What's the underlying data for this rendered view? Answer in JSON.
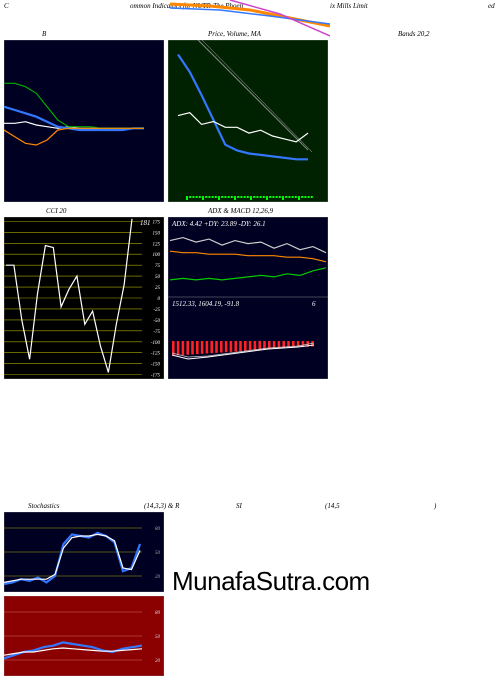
{
  "header": {
    "t1": "C",
    "t2": "ommon  Indicators  for  NUTR-The  Phoen",
    "t3": "ix Mills Limit",
    "t4": "ed"
  },
  "labels": {
    "bollinger_left": "B",
    "price_ma": "Price,  Volume,  MA",
    "bands": "Bands 20,2",
    "cci": "CCI 20",
    "adx_macd": "ADX  &  MACD 12,26,9",
    "stoch_a": "Stochastics",
    "stoch_b": "(14,3,3) & R",
    "stoch_c": "SI",
    "stoch_d": "(14,5",
    "stoch_e": ")"
  },
  "watermark": "MunafaSutra.com",
  "colors": {
    "panel_dark": "#000022",
    "panel_green": "#002200",
    "panel_red": "#8b0000",
    "blue": "#3377ff",
    "orange": "#ff8800",
    "green": "#00cc00",
    "white": "#ffffff"
  },
  "chart_data": [
    {
      "type": "line",
      "name_label": "B",
      "series": [
        {
          "color": "#ffffff",
          "values": [
            46,
            46,
            47,
            45,
            44,
            43,
            44,
            43,
            43,
            43,
            43,
            43,
            43,
            43
          ]
        },
        {
          "color": "#3377ff",
          "values": [
            56,
            54,
            52,
            50,
            47,
            44,
            43,
            42,
            42,
            42,
            42,
            42,
            43,
            43
          ]
        },
        {
          "color": "#00aa00",
          "values": [
            70,
            70,
            68,
            64,
            56,
            48,
            44,
            44,
            44,
            43,
            43,
            43,
            43,
            43
          ]
        },
        {
          "color": "#ff8800",
          "values": [
            42,
            38,
            34,
            33,
            36,
            42,
            43,
            43,
            43,
            43,
            43,
            43,
            43,
            43
          ]
        }
      ]
    },
    {
      "type": "line",
      "name_label": "Price, Volume, MA",
      "series": [
        {
          "color": "#3377ff",
          "values": [
            100,
            88,
            72,
            55,
            38,
            34,
            32,
            31,
            30,
            29,
            28,
            28
          ]
        },
        {
          "color": "#ffffff",
          "values": [
            58,
            60,
            52,
            54,
            50,
            50,
            46,
            48,
            44,
            42,
            40,
            46
          ]
        }
      ]
    },
    {
      "type": "line",
      "name_label": "CCI 20",
      "yticks": [
        175,
        150,
        125,
        100,
        75,
        50,
        25,
        0,
        -25,
        -50,
        -75,
        -100,
        -125,
        -150,
        -175
      ],
      "ylim": [
        -185,
        185
      ],
      "last_label": "181",
      "series": [
        {
          "color": "#ffffff",
          "values": [
            75,
            75,
            -50,
            -140,
            10,
            120,
            115,
            -20,
            20,
            50,
            -60,
            -30,
            -110,
            -170,
            -60,
            30,
            181
          ]
        }
      ]
    },
    {
      "type": "line",
      "name_label": "ADX",
      "readout": "ADX: 4.42  +DY: 23.89 -DY: 26.1",
      "series": [
        {
          "color": "#cccccc",
          "values": [
            36,
            38,
            35,
            37,
            33,
            36,
            34,
            35,
            31,
            34,
            30,
            32,
            28
          ]
        },
        {
          "color": "#ff8800",
          "values": [
            29,
            28,
            28,
            27,
            27,
            27,
            26,
            26,
            26,
            25,
            25,
            24,
            22
          ]
        },
        {
          "color": "#00cc00",
          "values": [
            10,
            11,
            10,
            11,
            10,
            11,
            12,
            13,
            12,
            14,
            13,
            16,
            18
          ]
        }
      ]
    },
    {
      "type": "bar",
      "name_label": "MACD",
      "readout": "1512.33,  1604.19,  -91.8",
      "right_label": "6",
      "values": [
        -92,
        -90,
        -88,
        -86,
        -84,
        -82,
        -80,
        -78,
        -76,
        -74,
        -72,
        -70,
        -68,
        -66,
        -64,
        -62,
        -60,
        -58,
        -56,
        -54,
        -52,
        -50,
        -48,
        -46,
        -44,
        -42,
        -40,
        -38,
        -36,
        -34
      ]
    },
    {
      "type": "line",
      "name_label": "Stochastics",
      "yticks": [
        80,
        50,
        20
      ],
      "ylim": [
        0,
        100
      ],
      "series": [
        {
          "color": "#3377ff",
          "values": [
            10,
            12,
            16,
            14,
            18,
            12,
            20,
            60,
            72,
            70,
            68,
            74,
            70,
            62,
            26,
            30,
            60
          ]
        },
        {
          "color": "#ffffff",
          "values": [
            12,
            14,
            16,
            16,
            16,
            16,
            22,
            55,
            68,
            70,
            70,
            72,
            70,
            64,
            30,
            28,
            52
          ]
        }
      ]
    },
    {
      "type": "line",
      "name_label": "RSI",
      "yticks": [
        80,
        50,
        20
      ],
      "ylim": [
        0,
        100
      ],
      "series": [
        {
          "color": "#3377ff",
          "values": [
            22,
            26,
            30,
            32,
            36,
            38,
            42,
            40,
            38,
            36,
            32,
            30,
            34,
            36,
            38
          ]
        },
        {
          "color": "#ffffff",
          "values": [
            26,
            28,
            30,
            30,
            32,
            34,
            35,
            34,
            33,
            32,
            31,
            31,
            32,
            33,
            34
          ]
        }
      ]
    }
  ]
}
